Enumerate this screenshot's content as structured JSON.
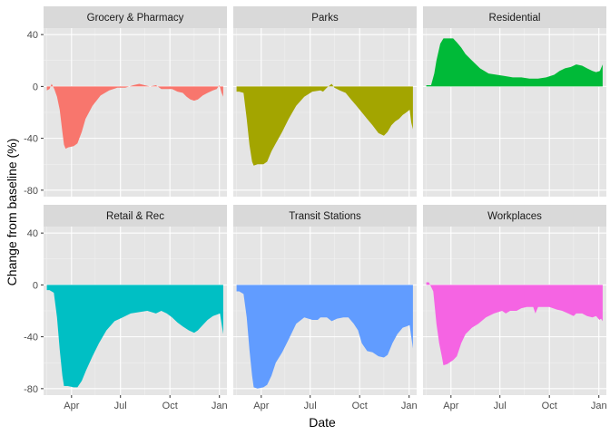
{
  "chart_data": {
    "type": "area",
    "layout": "facet-grid 2x3",
    "xlabel": "Date",
    "ylabel": "Change from baseline (%)",
    "xticks": [
      "Apr",
      "Jul",
      "Oct",
      "Jan"
    ],
    "yticks": [
      40,
      0,
      -40,
      -80
    ],
    "ylim": [
      -85,
      45
    ],
    "grid": true,
    "background": "#e5e5e5",
    "strip_color": "#d9d9d9",
    "panels": [
      {
        "name": "Grocery & Pharmacy",
        "color": "#F8766D",
        "points": [
          [
            "2020-02-15",
            -3
          ],
          [
            "2020-02-20",
            -2
          ],
          [
            "2020-02-24",
            2
          ],
          [
            "2020-02-29",
            -2
          ],
          [
            "2020-03-05",
            -8
          ],
          [
            "2020-03-10",
            -18
          ],
          [
            "2020-03-15",
            -35
          ],
          [
            "2020-03-18",
            -45
          ],
          [
            "2020-03-21",
            -48
          ],
          [
            "2020-03-26",
            -47
          ],
          [
            "2020-04-05",
            -46
          ],
          [
            "2020-04-12",
            -44
          ],
          [
            "2020-04-20",
            -35
          ],
          [
            "2020-04-27",
            -25
          ],
          [
            "2020-05-10",
            -15
          ],
          [
            "2020-05-25",
            -7
          ],
          [
            "2020-06-10",
            -3
          ],
          [
            "2020-06-25",
            -1
          ],
          [
            "2020-07-10",
            -1
          ],
          [
            "2020-07-25",
            1
          ],
          [
            "2020-08-05",
            2
          ],
          [
            "2020-08-15",
            1
          ],
          [
            "2020-08-25",
            0
          ],
          [
            "2020-09-05",
            1
          ],
          [
            "2020-09-15",
            -2
          ],
          [
            "2020-09-25",
            -2
          ],
          [
            "2020-10-05",
            -2
          ],
          [
            "2020-10-15",
            -4
          ],
          [
            "2020-10-25",
            -5
          ],
          [
            "2020-11-01",
            -8
          ],
          [
            "2020-11-08",
            -10
          ],
          [
            "2020-11-15",
            -11
          ],
          [
            "2020-11-22",
            -10
          ],
          [
            "2020-12-01",
            -7
          ],
          [
            "2020-12-10",
            -5
          ],
          [
            "2020-12-20",
            -3
          ],
          [
            "2020-12-27",
            -2
          ],
          [
            "2021-01-01",
            1
          ],
          [
            "2021-01-05",
            -5
          ],
          [
            "2021-01-08",
            -8
          ]
        ]
      },
      {
        "name": "Parks",
        "color": "#A3A500",
        "points": [
          [
            "2020-02-15",
            -4
          ],
          [
            "2020-02-20",
            -4
          ],
          [
            "2020-02-28",
            -5
          ],
          [
            "2020-03-05",
            -25
          ],
          [
            "2020-03-10",
            -45
          ],
          [
            "2020-03-15",
            -58
          ],
          [
            "2020-03-18",
            -61
          ],
          [
            "2020-03-25",
            -60
          ],
          [
            "2020-04-05",
            -60
          ],
          [
            "2020-04-12",
            -58
          ],
          [
            "2020-04-20",
            -50
          ],
          [
            "2020-04-28",
            -44
          ],
          [
            "2020-05-10",
            -35
          ],
          [
            "2020-05-22",
            -25
          ],
          [
            "2020-06-05",
            -15
          ],
          [
            "2020-06-20",
            -8
          ],
          [
            "2020-07-05",
            -4
          ],
          [
            "2020-07-20",
            -3
          ],
          [
            "2020-07-25",
            -4
          ],
          [
            "2020-08-01",
            -1
          ],
          [
            "2020-08-10",
            2
          ],
          [
            "2020-08-15",
            -1
          ],
          [
            "2020-08-25",
            -3
          ],
          [
            "2020-09-05",
            -5
          ],
          [
            "2020-09-15",
            -10
          ],
          [
            "2020-09-25",
            -15
          ],
          [
            "2020-10-05",
            -20
          ],
          [
            "2020-10-15",
            -25
          ],
          [
            "2020-10-25",
            -30
          ],
          [
            "2020-11-05",
            -36
          ],
          [
            "2020-11-15",
            -38
          ],
          [
            "2020-11-22",
            -35
          ],
          [
            "2020-11-29",
            -30
          ],
          [
            "2020-12-06",
            -27
          ],
          [
            "2020-12-13",
            -25
          ],
          [
            "2020-12-20",
            -22
          ],
          [
            "2020-12-27",
            -20
          ],
          [
            "2021-01-02",
            -18
          ],
          [
            "2021-01-05",
            -28
          ],
          [
            "2021-01-08",
            -33
          ]
        ]
      },
      {
        "name": "Residential",
        "color": "#00BA38",
        "points": [
          [
            "2020-02-15",
            1
          ],
          [
            "2020-02-24",
            1
          ],
          [
            "2020-03-01",
            10
          ],
          [
            "2020-03-05",
            20
          ],
          [
            "2020-03-12",
            33
          ],
          [
            "2020-03-18",
            37
          ],
          [
            "2020-04-05",
            37
          ],
          [
            "2020-04-12",
            34
          ],
          [
            "2020-04-20",
            30
          ],
          [
            "2020-04-28",
            25
          ],
          [
            "2020-05-10",
            20
          ],
          [
            "2020-05-25",
            14
          ],
          [
            "2020-06-10",
            10
          ],
          [
            "2020-06-25",
            9
          ],
          [
            "2020-07-10",
            8
          ],
          [
            "2020-07-25",
            7
          ],
          [
            "2020-08-10",
            7
          ],
          [
            "2020-08-25",
            6
          ],
          [
            "2020-09-10",
            6
          ],
          [
            "2020-09-25",
            7
          ],
          [
            "2020-10-10",
            9
          ],
          [
            "2020-10-20",
            12
          ],
          [
            "2020-10-30",
            14
          ],
          [
            "2020-11-10",
            15
          ],
          [
            "2020-11-20",
            17
          ],
          [
            "2020-12-01",
            16
          ],
          [
            "2020-12-10",
            14
          ],
          [
            "2020-12-20",
            12
          ],
          [
            "2020-12-27",
            11
          ],
          [
            "2021-01-03",
            12
          ],
          [
            "2021-01-08",
            17
          ]
        ]
      },
      {
        "name": "Retail & Rec",
        "color": "#00BFC4",
        "points": [
          [
            "2020-02-15",
            -4
          ],
          [
            "2020-02-20",
            -4
          ],
          [
            "2020-02-28",
            -6
          ],
          [
            "2020-03-05",
            -25
          ],
          [
            "2020-03-10",
            -50
          ],
          [
            "2020-03-15",
            -70
          ],
          [
            "2020-03-18",
            -78
          ],
          [
            "2020-03-25",
            -78
          ],
          [
            "2020-04-05",
            -79
          ],
          [
            "2020-04-12",
            -79
          ],
          [
            "2020-04-20",
            -74
          ],
          [
            "2020-04-28",
            -66
          ],
          [
            "2020-05-10",
            -55
          ],
          [
            "2020-05-22",
            -45
          ],
          [
            "2020-06-05",
            -35
          ],
          [
            "2020-06-20",
            -28
          ],
          [
            "2020-07-05",
            -25
          ],
          [
            "2020-07-20",
            -22
          ],
          [
            "2020-08-05",
            -21
          ],
          [
            "2020-08-20",
            -20
          ],
          [
            "2020-09-05",
            -22
          ],
          [
            "2020-09-15",
            -20
          ],
          [
            "2020-09-25",
            -22
          ],
          [
            "2020-10-05",
            -25
          ],
          [
            "2020-10-15",
            -29
          ],
          [
            "2020-10-25",
            -32
          ],
          [
            "2020-11-05",
            -35
          ],
          [
            "2020-11-15",
            -37
          ],
          [
            "2020-11-22",
            -35
          ],
          [
            "2020-12-01",
            -31
          ],
          [
            "2020-12-10",
            -27
          ],
          [
            "2020-12-20",
            -24
          ],
          [
            "2020-12-27",
            -23
          ],
          [
            "2021-01-02",
            -22
          ],
          [
            "2021-01-05",
            -30
          ],
          [
            "2021-01-08",
            -38
          ]
        ]
      },
      {
        "name": "Transit Stations",
        "color": "#619CFF",
        "points": [
          [
            "2020-02-15",
            -5
          ],
          [
            "2020-02-20",
            -5
          ],
          [
            "2020-02-28",
            -7
          ],
          [
            "2020-03-05",
            -25
          ],
          [
            "2020-03-10",
            -50
          ],
          [
            "2020-03-15",
            -70
          ],
          [
            "2020-03-18",
            -79
          ],
          [
            "2020-03-25",
            -80
          ],
          [
            "2020-04-05",
            -79
          ],
          [
            "2020-04-12",
            -77
          ],
          [
            "2020-04-20",
            -70
          ],
          [
            "2020-04-28",
            -60
          ],
          [
            "2020-05-10",
            -52
          ],
          [
            "2020-05-22",
            -42
          ],
          [
            "2020-06-05",
            -30
          ],
          [
            "2020-06-20",
            -25
          ],
          [
            "2020-07-05",
            -27
          ],
          [
            "2020-07-15",
            -27
          ],
          [
            "2020-07-20",
            -25
          ],
          [
            "2020-08-01",
            -25
          ],
          [
            "2020-08-10",
            -28
          ],
          [
            "2020-08-20",
            -26
          ],
          [
            "2020-09-01",
            -25
          ],
          [
            "2020-09-10",
            -25
          ],
          [
            "2020-09-20",
            -30
          ],
          [
            "2020-09-28",
            -35
          ],
          [
            "2020-10-05",
            -45
          ],
          [
            "2020-10-15",
            -51
          ],
          [
            "2020-10-25",
            -52
          ],
          [
            "2020-11-05",
            -55
          ],
          [
            "2020-11-15",
            -56
          ],
          [
            "2020-11-22",
            -54
          ],
          [
            "2020-12-01",
            -45
          ],
          [
            "2020-12-10",
            -38
          ],
          [
            "2020-12-20",
            -33
          ],
          [
            "2020-12-27",
            -32
          ],
          [
            "2021-01-02",
            -31
          ],
          [
            "2021-01-05",
            -40
          ],
          [
            "2021-01-08",
            -49
          ]
        ]
      },
      {
        "name": "Workplaces",
        "color": "#F564E3",
        "points": [
          [
            "2020-02-15",
            2
          ],
          [
            "2020-02-20",
            2
          ],
          [
            "2020-02-28",
            -5
          ],
          [
            "2020-03-05",
            -30
          ],
          [
            "2020-03-10",
            -45
          ],
          [
            "2020-03-15",
            -55
          ],
          [
            "2020-03-18",
            -62
          ],
          [
            "2020-03-25",
            -61
          ],
          [
            "2020-04-05",
            -58
          ],
          [
            "2020-04-12",
            -55
          ],
          [
            "2020-04-20",
            -45
          ],
          [
            "2020-04-28",
            -38
          ],
          [
            "2020-05-10",
            -33
          ],
          [
            "2020-05-22",
            -30
          ],
          [
            "2020-06-05",
            -25
          ],
          [
            "2020-06-20",
            -22
          ],
          [
            "2020-07-05",
            -20
          ],
          [
            "2020-07-12",
            -22
          ],
          [
            "2020-07-20",
            -20
          ],
          [
            "2020-08-01",
            -20
          ],
          [
            "2020-08-10",
            -18
          ],
          [
            "2020-08-20",
            -17
          ],
          [
            "2020-09-01",
            -17
          ],
          [
            "2020-09-05",
            -22
          ],
          [
            "2020-09-10",
            -17
          ],
          [
            "2020-09-20",
            -17
          ],
          [
            "2020-10-01",
            -17
          ],
          [
            "2020-10-15",
            -19
          ],
          [
            "2020-10-25",
            -20
          ],
          [
            "2020-11-05",
            -22
          ],
          [
            "2020-11-15",
            -24
          ],
          [
            "2020-11-20",
            -22
          ],
          [
            "2020-12-01",
            -22
          ],
          [
            "2020-12-10",
            -24
          ],
          [
            "2020-12-20",
            -25
          ],
          [
            "2020-12-27",
            -24
          ],
          [
            "2021-01-02",
            -27
          ],
          [
            "2021-01-05",
            -26
          ],
          [
            "2021-01-08",
            -28
          ]
        ]
      }
    ]
  }
}
